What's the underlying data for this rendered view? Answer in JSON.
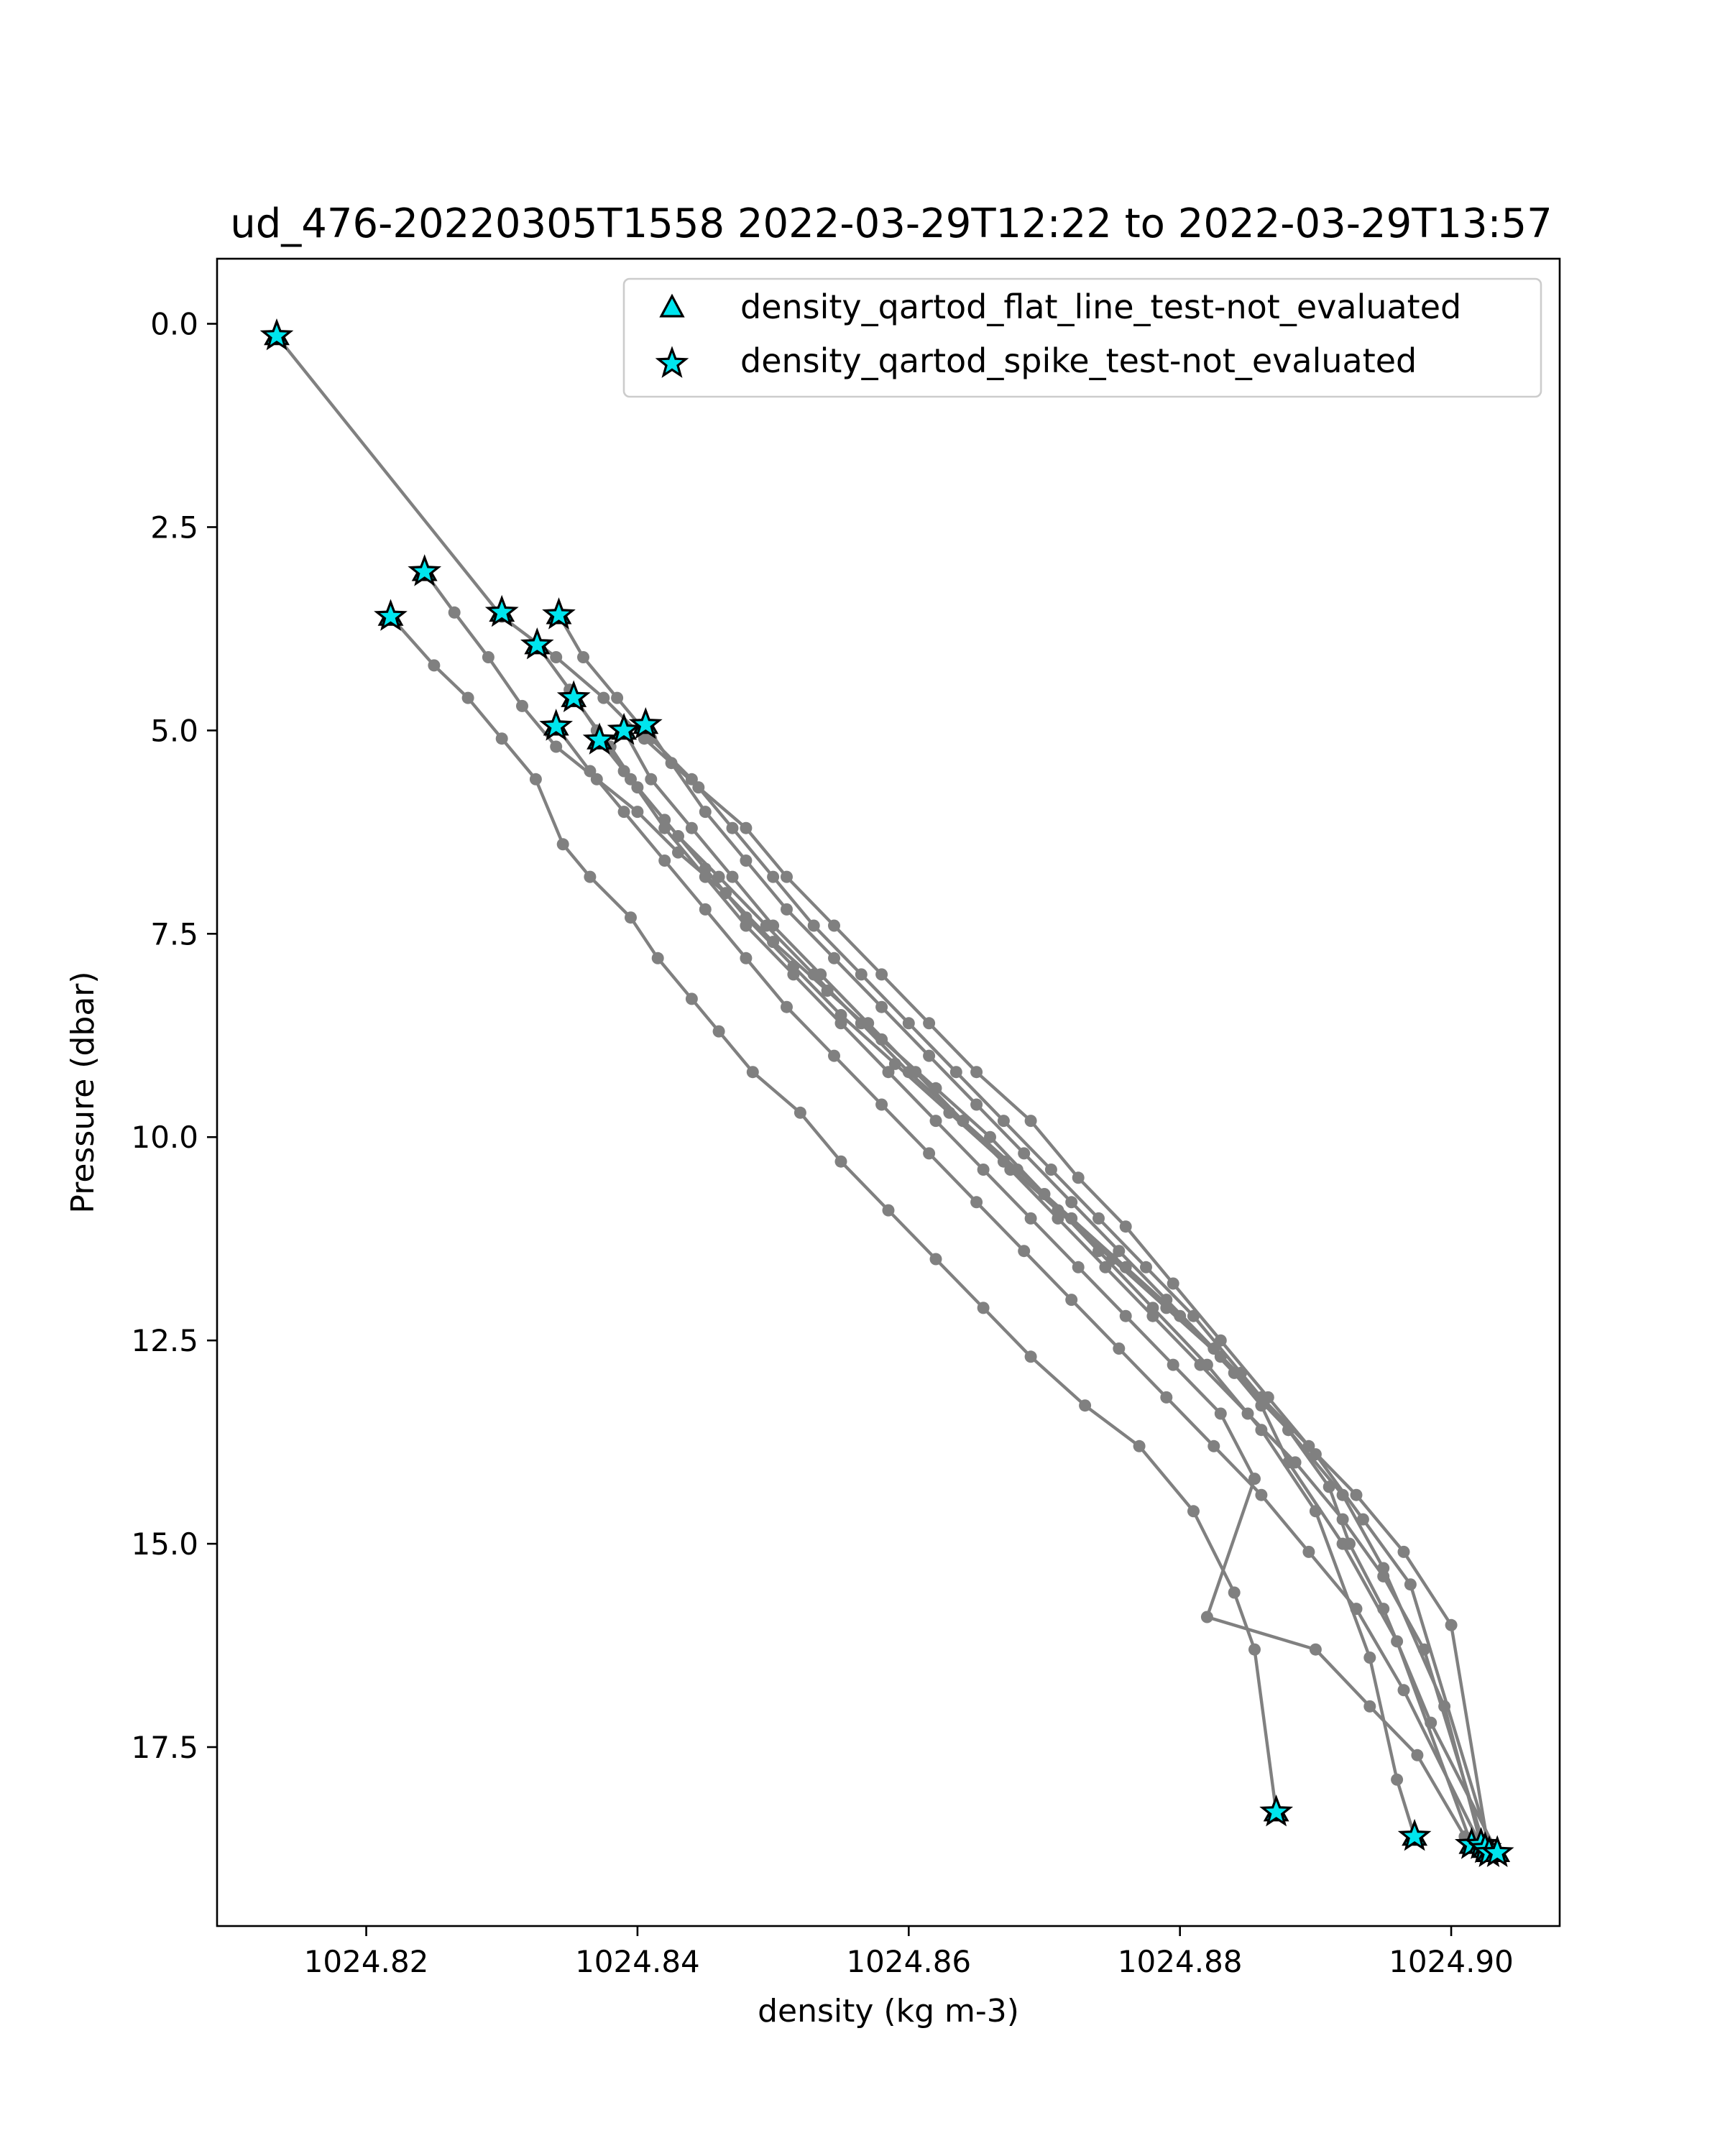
{
  "chart_data": {
    "type": "line",
    "title": "ud_476-20220305T1558 2022-03-29T12:22 to 2022-03-29T13:57",
    "xlabel": "density (kg m-3)",
    "ylabel": "Pressure (dbar)",
    "xlim": [
      1024.809,
      1024.908
    ],
    "ylim": [
      19.7,
      -0.8
    ],
    "y_inverted": true,
    "grid": false,
    "xticks": [
      1024.82,
      1024.84,
      1024.86,
      1024.88,
      1024.9
    ],
    "xtick_labels": [
      "1024.82",
      "1024.84",
      "1024.86",
      "1024.88",
      "1024.90"
    ],
    "yticks": [
      0.0,
      2.5,
      5.0,
      7.5,
      10.0,
      12.5,
      15.0,
      17.5
    ],
    "ytick_labels": [
      "0.0",
      "2.5",
      "5.0",
      "7.5",
      "10.0",
      "12.5",
      "15.0",
      "17.5"
    ],
    "line_color": "#808080",
    "marker_face_color": "#00e5ee",
    "marker_edge_color": "#000000",
    "legend": {
      "placement": "upper right",
      "entries": [
        {
          "label": "density_qartod_flat_line_test-not_evaluated",
          "marker": "triangle"
        },
        {
          "label": "density_qartod_spike_test-not_evaluated",
          "marker": "star"
        }
      ]
    },
    "profiles": [
      {
        "x": [
          1024.8134,
          1024.83,
          1024.834,
          1024.8375,
          1024.8405,
          1024.8445,
          1024.848,
          1024.851,
          1024.8545,
          1024.858,
          1024.8615,
          1024.865,
          1024.869,
          1024.8725,
          1024.876,
          1024.8795,
          1024.883,
          1024.8865,
          1024.89,
          1024.8935,
          1024.897,
          1024.903
        ],
        "y": [
          0.15,
          3.6,
          4.1,
          4.6,
          5.1,
          5.7,
          6.2,
          6.8,
          7.4,
          8.0,
          8.6,
          9.2,
          9.8,
          10.5,
          11.1,
          11.8,
          12.5,
          13.2,
          13.9,
          14.7,
          15.5,
          18.8
        ]
      },
      {
        "x": [
          1024.8243,
          1024.8265,
          1024.829,
          1024.8315,
          1024.834,
          1024.837,
          1024.84,
          1024.843,
          1024.8465,
          1024.85,
          1024.854,
          1024.858,
          1024.862,
          1024.866,
          1024.87,
          1024.874,
          1024.878,
          1024.882,
          1024.886,
          1024.89,
          1024.894,
          1024.896,
          1024.8973
        ],
        "y": [
          3.05,
          3.55,
          4.1,
          4.7,
          5.2,
          5.6,
          6.0,
          6.5,
          7.0,
          7.6,
          8.2,
          8.8,
          9.4,
          10.0,
          10.7,
          11.4,
          12.1,
          12.8,
          13.6,
          14.6,
          16.4,
          17.9,
          18.6
        ]
      },
      {
        "x": [
          1024.8218,
          1024.825,
          1024.8275,
          1024.83,
          1024.8325,
          1024.8345,
          1024.8365,
          1024.8395,
          1024.8415,
          1024.844,
          1024.846,
          1024.8485,
          1024.852,
          1024.855,
          1024.8585,
          1024.862,
          1024.8655,
          1024.869,
          1024.873,
          1024.877,
          1024.881,
          1024.884,
          1024.8855,
          1024.8871
        ],
        "y": [
          3.6,
          4.2,
          4.6,
          5.1,
          5.6,
          6.4,
          6.8,
          7.3,
          7.8,
          8.3,
          8.7,
          9.2,
          9.7,
          10.3,
          10.9,
          11.5,
          12.1,
          12.7,
          13.3,
          13.8,
          14.6,
          15.6,
          16.3,
          18.3
        ]
      },
      {
        "x": [
          1024.8326,
          1024.835,
          1024.837,
          1024.839,
          1024.842,
          1024.845,
          1024.848,
          1024.8515,
          1024.855,
          1024.859,
          1024.863,
          1024.867,
          1024.871,
          1024.875,
          1024.879,
          1024.883,
          1024.886,
          1024.888,
          1024.892,
          1024.896,
          1024.9015
        ],
        "y": [
          3.95,
          4.5,
          5.0,
          5.5,
          6.1,
          6.7,
          7.3,
          7.9,
          8.5,
          9.1,
          9.7,
          10.3,
          10.9,
          11.5,
          12.1,
          12.7,
          13.3,
          14.0,
          15.0,
          16.2,
          18.7
        ]
      },
      {
        "x": [
          1024.8353,
          1024.838,
          1024.84,
          1024.843,
          1024.846,
          1024.8495,
          1024.853,
          1024.8565,
          1024.86,
          1024.864,
          1024.868,
          1024.872,
          1024.876,
          1024.88,
          1024.884,
          1024.888,
          1024.892,
          1024.895,
          1024.8995,
          1024.9022
        ],
        "y": [
          4.6,
          5.2,
          5.7,
          6.3,
          6.8,
          7.4,
          8.0,
          8.6,
          9.2,
          9.8,
          10.4,
          11.0,
          11.6,
          12.2,
          12.9,
          13.6,
          14.4,
          15.3,
          17.0,
          18.7
        ]
      },
      {
        "x": [
          1024.8342,
          1024.836,
          1024.8385,
          1024.841,
          1024.844,
          1024.847,
          1024.85,
          1024.853,
          1024.8565,
          1024.86,
          1024.8635,
          1024.867,
          1024.8705,
          1024.874,
          1024.8775,
          1024.881,
          1024.8845,
          1024.888,
          1024.891,
          1024.8925,
          1024.895,
          1024.8985,
          1024.9034
        ],
        "y": [
          3.58,
          4.1,
          4.6,
          5.1,
          5.6,
          6.2,
          6.8,
          7.4,
          8.0,
          8.6,
          9.2,
          9.8,
          10.4,
          11.0,
          11.6,
          12.2,
          12.9,
          13.6,
          14.3,
          15.0,
          15.8,
          17.2,
          18.8
        ]
      },
      {
        "x": [
          1024.834,
          1024.8365,
          1024.839,
          1024.842,
          1024.845,
          1024.848,
          1024.851,
          1024.8545,
          1024.858,
          1024.8615,
          1024.865,
          1024.8685,
          1024.872,
          1024.8755,
          1024.879,
          1024.8825,
          1024.886,
          1024.8895,
          1024.893,
          1024.8965,
          1024.902
        ],
        "y": [
          4.95,
          5.5,
          6.0,
          6.6,
          7.2,
          7.8,
          8.4,
          9.0,
          9.6,
          10.2,
          10.8,
          11.4,
          12.0,
          12.6,
          13.2,
          13.8,
          14.4,
          15.1,
          15.8,
          16.8,
          18.65
        ]
      },
      {
        "x": [
          1024.839,
          1024.841,
          1024.844,
          1024.847,
          1024.85,
          1024.8535,
          1024.857,
          1024.8605,
          1024.864,
          1024.8675,
          1024.871,
          1024.8745,
          1024.878,
          1024.8815,
          1024.885,
          1024.8885,
          1024.892,
          1024.895,
          1024.898,
          1024.9025
        ],
        "y": [
          5.0,
          5.6,
          6.2,
          6.8,
          7.4,
          8.0,
          8.6,
          9.2,
          9.8,
          10.4,
          11.0,
          11.6,
          12.2,
          12.8,
          13.4,
          14.0,
          14.7,
          15.4,
          16.3,
          18.75
        ]
      },
      {
        "x": [
          1024.8406,
          1024.8425,
          1024.845,
          1024.848,
          1024.851,
          1024.8545,
          1024.858,
          1024.8615,
          1024.865,
          1024.8685,
          1024.872,
          1024.8755,
          1024.879,
          1024.8825,
          1024.886,
          1024.8895,
          1024.893,
          1024.8965,
          1024.9,
          1024.9028
        ],
        "y": [
          4.93,
          5.4,
          6.0,
          6.6,
          7.2,
          7.8,
          8.4,
          9.0,
          9.6,
          10.2,
          10.8,
          11.4,
          12.0,
          12.6,
          13.2,
          13.8,
          14.4,
          15.1,
          16.0,
          18.8
        ]
      },
      {
        "x": [
          1024.8372,
          1024.8395,
          1024.842,
          1024.845,
          1024.848,
          1024.8515,
          1024.855,
          1024.8585,
          1024.862,
          1024.8655,
          1024.869,
          1024.8725,
          1024.876,
          1024.8795,
          1024.883,
          1024.8855,
          1024.882,
          1024.89,
          1024.894,
          1024.8975,
          1024.901
        ],
        "y": [
          5.12,
          5.6,
          6.2,
          6.8,
          7.4,
          8.0,
          8.6,
          9.2,
          9.8,
          10.4,
          11.0,
          11.6,
          12.2,
          12.8,
          13.4,
          14.2,
          15.9,
          16.3,
          17.0,
          17.6,
          18.6
        ]
      }
    ],
    "flagged_points": {
      "x": [
        1024.8134,
        1024.8243,
        1024.8218,
        1024.83,
        1024.8342,
        1024.8326,
        1024.8353,
        1024.834,
        1024.839,
        1024.8406,
        1024.8372,
        1024.8871,
        1024.8973,
        1024.9015,
        1024.9022,
        1024.9025,
        1024.9028,
        1024.9034
      ],
      "y": [
        0.15,
        3.05,
        3.6,
        3.55,
        3.58,
        3.95,
        4.6,
        4.95,
        5.0,
        4.93,
        5.12,
        18.3,
        18.6,
        18.7,
        18.7,
        18.75,
        18.8,
        18.8
      ]
    }
  }
}
